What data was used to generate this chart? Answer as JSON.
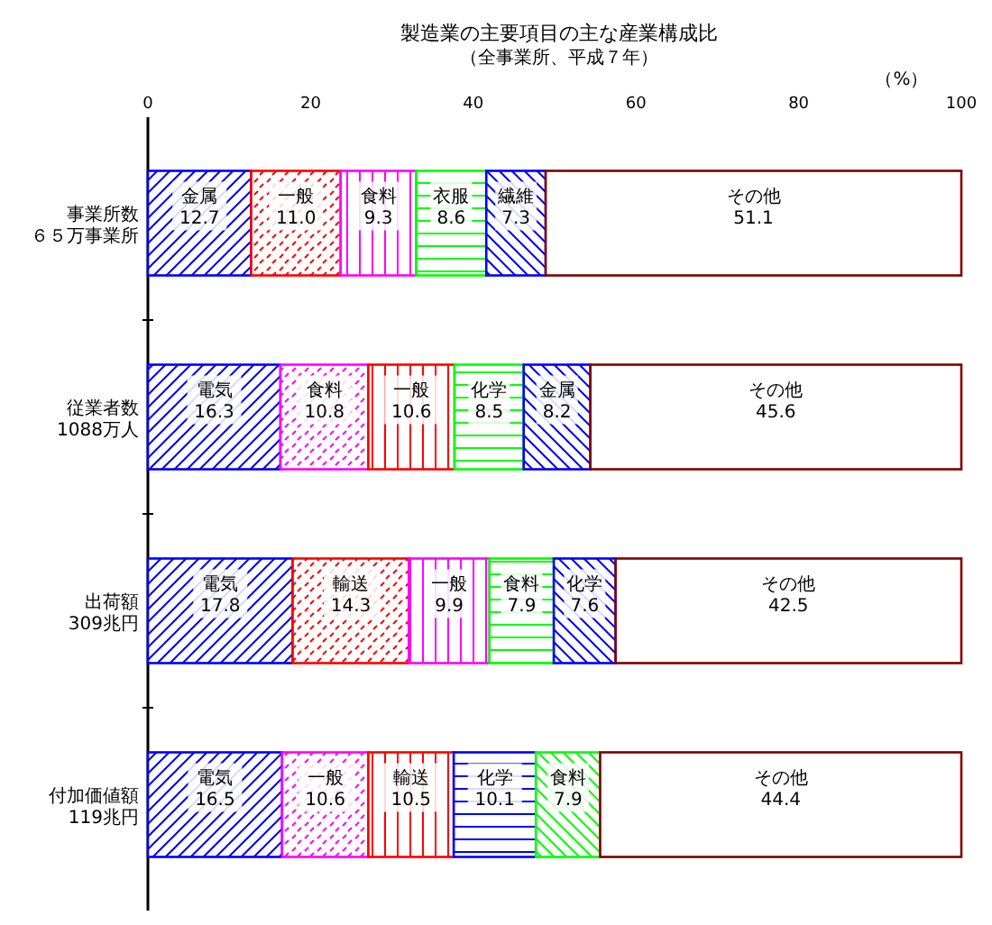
{
  "chart_data": {
    "type": "bar",
    "orientation": "horizontal",
    "stacked": true,
    "title": "製造業の主要項目の主な産業構成比",
    "subtitle": "（全事業所、平成７年）",
    "annotations": [
      "（%）"
    ],
    "categories": [
      "事業所数６５万事業所",
      "従業者数\n1088万人",
      "出荷額\n309兆円",
      "付加価値額\n119兆円"
    ],
    "xlim": [
      0,
      100
    ],
    "xticks": [
      0,
      20,
      40,
      60,
      80,
      100
    ],
    "grid": false,
    "series": [
      {
        "values": [
          12.7,
          16.3,
          17.8,
          16.5
        ],
        "colors": [
          "#0000ff",
          "#0000ff",
          "#0000ff",
          "#0000ff"
        ],
        "value_labels": [
          "金属\n12.7",
          "電気\n16.3",
          "電気\n17.8",
          "電気\n16.5"
        ]
      },
      {
        "values": [
          11.0,
          10.8,
          14.3,
          10.6
        ],
        "colors": [
          "#ff0000",
          "#ff00ff",
          "#ff0000",
          "#ff00ff"
        ],
        "value_labels": [
          "一般\n11.0",
          "食料\n10.8",
          "輸送\n14.3",
          "一般\n10.6"
        ]
      },
      {
        "values": [
          9.3,
          10.6,
          9.9,
          10.5
        ],
        "colors": [
          "#ff00ff",
          "#ff0000",
          "#ff00ff",
          "#ff0000"
        ],
        "value_labels": [
          "食料\n9.3",
          "一般\n10.6",
          "一般\n9.9",
          "輸送\n10.5"
        ]
      },
      {
        "values": [
          8.6,
          8.5,
          7.9,
          10.1
        ],
        "colors": [
          "#00ff00",
          "#00ff00",
          "#00ff00",
          "#0000ff"
        ],
        "value_labels": [
          "衣服\n8.6",
          "化学\n8.5",
          "食料\n7.9",
          "化学\n10.1"
        ]
      },
      {
        "values": [
          7.3,
          8.2,
          7.6,
          7.9
        ],
        "colors": [
          "#0000ff",
          "#0000ff",
          "#0000ff",
          "#00ff00"
        ],
        "value_labels": [
          "繊維\n7.3",
          "金属\n8.2",
          "化学\n7.6",
          "食料\n7.9"
        ]
      },
      {
        "values": [
          51.1,
          45.6,
          42.5,
          44.4
        ],
        "colors": [
          "#800000",
          "#800000",
          "#800000",
          "#800000"
        ],
        "value_labels": [
          "その他\n51.1",
          "その他\n45.6",
          "その他\n42.5",
          "その他\n44.4"
        ]
      }
    ]
  }
}
